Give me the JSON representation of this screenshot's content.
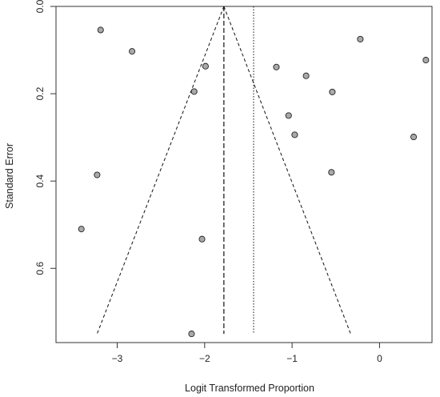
{
  "chart_data": {
    "type": "scatter",
    "title": "",
    "xlabel": "Logit Transformed Proportion",
    "ylabel": "Standard Error",
    "xlim": [
      -3.7,
      0.6
    ],
    "ylim": [
      0.0,
      0.77
    ],
    "y_reversed": true,
    "xticks": [
      -3,
      -2,
      -1,
      0
    ],
    "xtick_labels": [
      "−3",
      "−2",
      "−1",
      "0"
    ],
    "yticks": [
      0.0,
      0.2,
      0.4,
      0.6
    ],
    "ytick_labels": [
      "0.0",
      "0.2",
      "0.4",
      "0.6"
    ],
    "grid": false,
    "series": [
      {
        "x": [
          -3.19,
          -2.83,
          -1.99,
          -2.12,
          -3.23,
          -3.41,
          -2.03,
          -2.15,
          -0.22,
          0.53,
          -1.18,
          -0.84,
          -0.54,
          -1.04,
          -0.97,
          0.39,
          -0.55
        ],
        "y": [
          0.054,
          0.103,
          0.137,
          0.195,
          0.386,
          0.51,
          0.533,
          0.75,
          0.075,
          0.123,
          0.139,
          0.159,
          0.196,
          0.25,
          0.294,
          0.299,
          0.38
        ]
      }
    ],
    "reference_lines": {
      "pooled_estimate_x": -1.78,
      "dotted_vertical_x": -1.44,
      "funnel_apex": [
        -1.78,
        0.0
      ],
      "funnel_bottom_y": 0.75,
      "funnel_left_x": -3.23,
      "funnel_right_x": -0.33
    },
    "colors": {
      "point_fill": "#a9a9a9",
      "point_stroke": "#222222",
      "line": "#111111",
      "axis": "#333333"
    }
  }
}
